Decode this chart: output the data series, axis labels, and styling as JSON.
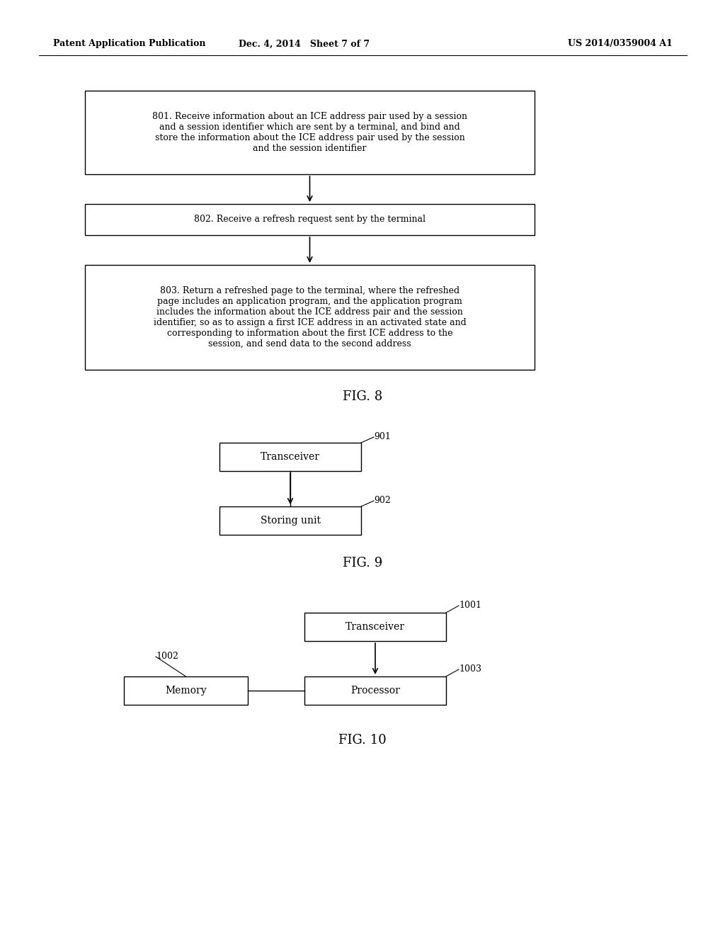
{
  "bg_color": "#ffffff",
  "header_left": "Patent Application Publication",
  "header_center": "Dec. 4, 2014   Sheet 7 of 7",
  "header_right": "US 2014/0359004 A1",
  "fig8_box1_text": "801. Receive information about an ICE address pair used by a session\nand a session identifier which are sent by a terminal, and bind and\nstore the information about the ICE address pair used by the session\nand the session identifier",
  "fig8_box2_text": "802. Receive a refresh request sent by the terminal",
  "fig8_box3_text": "803. Return a refreshed page to the terminal, where the refreshed\npage includes an application program, and the application program\nincludes the information about the ICE address pair and the session\nidentifier, so as to assign a first ICE address in an activated state and\ncorresponding to information about the first ICE address to the\nsession, and send data to the second address",
  "fig8_label": "FIG. 8",
  "fig9_box1_text": "Transceiver",
  "fig9_box2_text": "Storing unit",
  "fig9_label1": "901",
  "fig9_label2": "902",
  "fig9_label": "FIG. 9",
  "fig10_box1_text": "Transceiver",
  "fig10_box2_text": "Memory",
  "fig10_box3_text": "Processor",
  "fig10_label1": "1001",
  "fig10_label2": "1002",
  "fig10_label3": "1003",
  "fig10_label": "FIG. 10"
}
